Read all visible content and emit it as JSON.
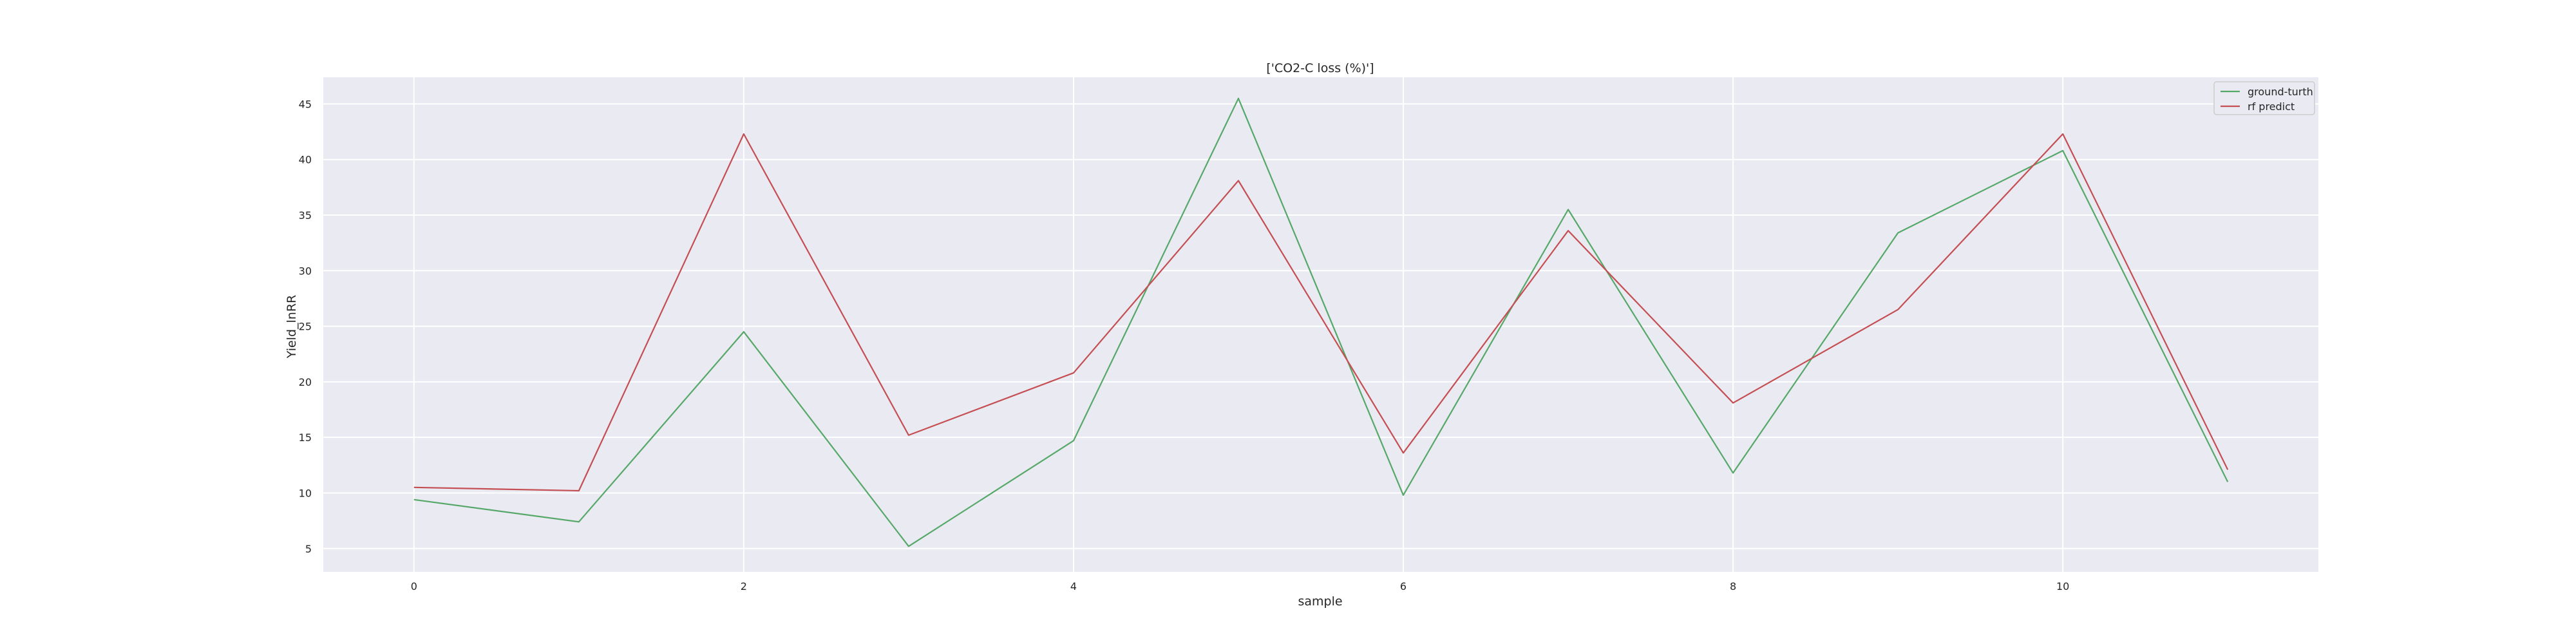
{
  "chart_data": {
    "type": "line",
    "title": "['CO2-C loss (%)']",
    "xlabel": "sample",
    "ylabel": "Yield_lnRR",
    "x": [
      0,
      1,
      2,
      3,
      4,
      5,
      6,
      7,
      8,
      9,
      10,
      11
    ],
    "xticks": [
      0,
      2,
      4,
      6,
      8,
      10
    ],
    "yticks": [
      5,
      10,
      15,
      20,
      25,
      30,
      35,
      40,
      45
    ],
    "xlim": [
      -0.55,
      11.55
    ],
    "ylim": [
      2.9,
      47.4
    ],
    "grid": true,
    "legend_position": "top-right",
    "series": [
      {
        "name": "ground-turth",
        "color": "#55a868",
        "values": [
          9.4,
          7.4,
          24.5,
          5.2,
          14.7,
          45.5,
          9.8,
          35.5,
          11.8,
          33.4,
          40.8,
          11.0
        ]
      },
      {
        "name": "rf predict",
        "color": "#c44e52",
        "values": [
          10.5,
          10.2,
          42.3,
          15.2,
          20.8,
          38.1,
          13.6,
          33.6,
          18.1,
          26.5,
          42.3,
          12.1
        ]
      }
    ]
  }
}
